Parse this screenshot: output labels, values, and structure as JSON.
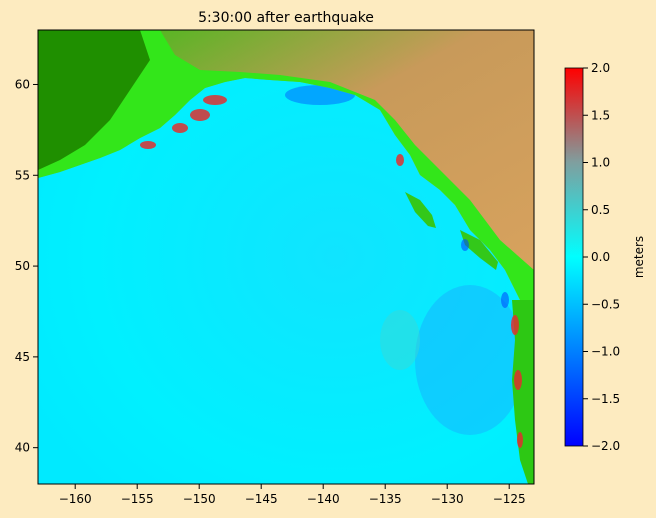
{
  "title": "5:30:00 after earthquake",
  "map": {
    "x_ticks": [
      "−160",
      "−155",
      "−150",
      "−145",
      "−140",
      "−135",
      "−130",
      "−125"
    ],
    "y_ticks": [
      "60",
      "55",
      "50",
      "45",
      "40"
    ],
    "x_range": [
      -163,
      -123
    ],
    "y_range": [
      38,
      63
    ],
    "ocean_color": "#00e8ff",
    "land_lowland_color": "#1f8f00",
    "land_green_color": "#33e61a",
    "land_highland_color": "#d9a35e"
  },
  "colorbar": {
    "label": "meters",
    "ticks": [
      "2.0",
      "1.5",
      "1.0",
      "0.5",
      "0.0",
      "−0.5",
      "−1.0",
      "−1.5",
      "−2.0"
    ],
    "range": [
      -2.0,
      2.0
    ],
    "colors": [
      "#0000ff",
      "#00c8ff",
      "#00ffff",
      "#a0a0a0",
      "#ff0000"
    ]
  }
}
